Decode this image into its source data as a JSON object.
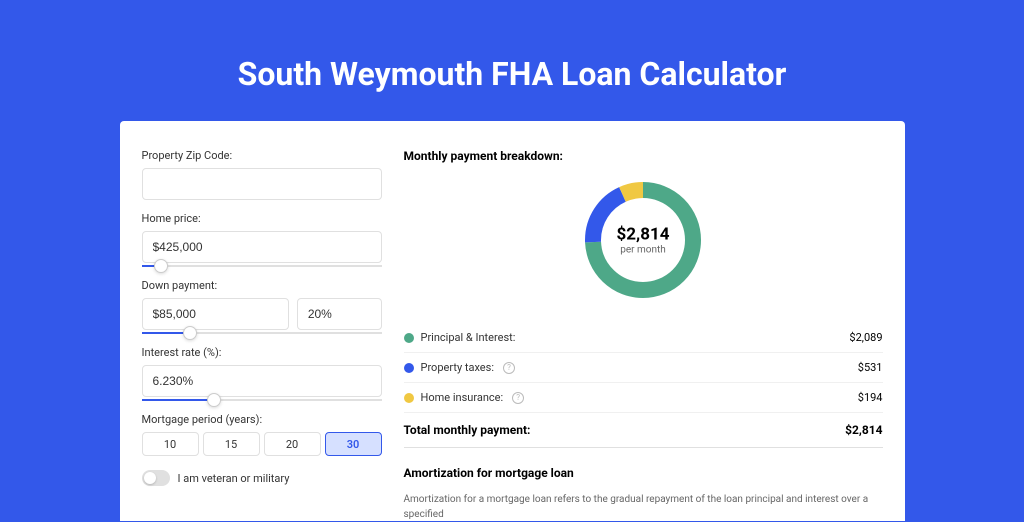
{
  "title": "South Weymouth FHA Loan Calculator",
  "colors": {
    "page_bg": "#3358ea",
    "card_bg": "#ffffff",
    "accent": "#3358ea",
    "principal": "#4ea888",
    "taxes": "#3358ea",
    "insurance": "#f0c842"
  },
  "form": {
    "zip_label": "Property Zip Code:",
    "zip_value": "",
    "home_price_label": "Home price:",
    "home_price_value": "$425,000",
    "home_price_slider_pct": 8,
    "down_payment_label": "Down payment:",
    "down_payment_value": "$85,000",
    "down_payment_pct_value": "20%",
    "down_payment_slider_pct": 20,
    "interest_label": "Interest rate (%):",
    "interest_value": "6.230%",
    "interest_slider_pct": 30,
    "period_label": "Mortgage period (years):",
    "period_options": [
      "10",
      "15",
      "20",
      "30"
    ],
    "period_selected": "30",
    "veteran_label": "I am veteran or military"
  },
  "breakdown": {
    "title": "Monthly payment breakdown:",
    "donut_amount": "$2,814",
    "donut_sublabel": "per month",
    "segments": {
      "principal_pct": 74.2,
      "taxes_pct": 18.9,
      "insurance_pct": 6.9
    },
    "rows": [
      {
        "label": "Principal & Interest:",
        "value": "$2,089",
        "color": "#4ea888",
        "has_help": false
      },
      {
        "label": "Property taxes:",
        "value": "$531",
        "color": "#3358ea",
        "has_help": true
      },
      {
        "label": "Home insurance:",
        "value": "$194",
        "color": "#f0c842",
        "has_help": true
      }
    ],
    "total_label": "Total monthly payment:",
    "total_value": "$2,814"
  },
  "amortization": {
    "title": "Amortization for mortgage loan",
    "text": "Amortization for a mortgage loan refers to the gradual repayment of the loan principal and interest over a specified"
  }
}
